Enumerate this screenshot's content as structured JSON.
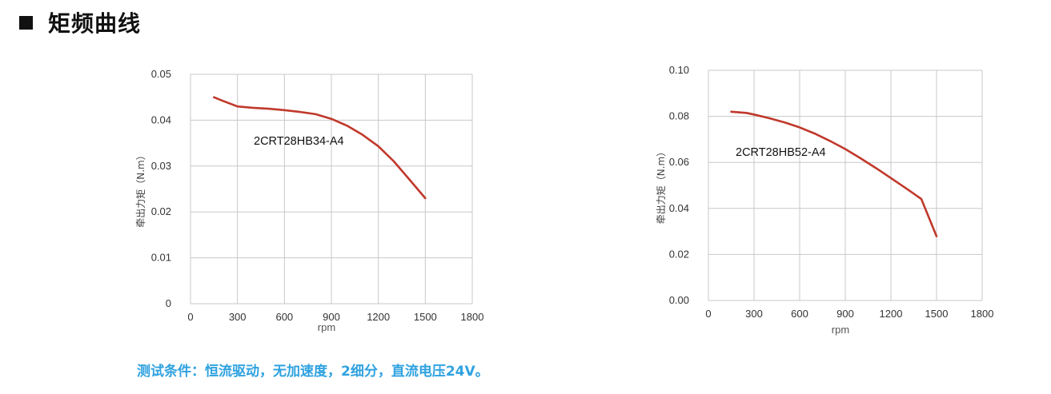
{
  "page": {
    "section_title": "矩频曲线",
    "footnote": "测试条件：恒流驱动，无加速度，2细分，直流电压24V。"
  },
  "colors": {
    "curve": "#c0392b",
    "grid": "#c8c8c8",
    "footnote": "#2fa2e0"
  },
  "chart_data": [
    {
      "type": "line",
      "xlabel": "rpm",
      "ylabel": "牵出力矩（N.m）",
      "xlim": [
        0,
        1800
      ],
      "ylim": [
        0,
        0.05
      ],
      "x_ticks": [
        "0",
        "300",
        "600",
        "900",
        "1200",
        "1500",
        "1800"
      ],
      "y_ticks": [
        "0",
        "0.01",
        "0.02",
        "0.03",
        "0.04",
        "0.05"
      ],
      "grid": true,
      "annotation": "2CRT28HB34-A4",
      "series": [
        {
          "x": [
            150,
            200,
            300,
            400,
            500,
            600,
            700,
            800,
            900,
            1000,
            1100,
            1200,
            1300,
            1400,
            1500
          ],
          "values": [
            0.045,
            0.0443,
            0.043,
            0.0427,
            0.0425,
            0.0422,
            0.0418,
            0.0413,
            0.0403,
            0.0388,
            0.0368,
            0.0343,
            0.031,
            0.027,
            0.023
          ]
        }
      ]
    },
    {
      "type": "line",
      "xlabel": "rpm",
      "ylabel": "牵出力矩（N.m）",
      "xlim": [
        0,
        1800
      ],
      "ylim": [
        0,
        0.1
      ],
      "x_ticks": [
        "0",
        "300",
        "600",
        "900",
        "1200",
        "1500",
        "1800"
      ],
      "y_ticks": [
        "0.00",
        "0.02",
        "0.04",
        "0.06",
        "0.08",
        "0.10"
      ],
      "grid": true,
      "annotation": "2CRT28HB52-A4",
      "series": [
        {
          "x": [
            150,
            250,
            300,
            400,
            500,
            600,
            700,
            800,
            900,
            1000,
            1100,
            1200,
            1300,
            1400,
            1500
          ],
          "values": [
            0.082,
            0.0815,
            0.0808,
            0.0792,
            0.0774,
            0.0752,
            0.0725,
            0.0693,
            0.0658,
            0.0618,
            0.0576,
            0.0532,
            0.0487,
            0.0441,
            0.0279
          ]
        }
      ]
    }
  ]
}
